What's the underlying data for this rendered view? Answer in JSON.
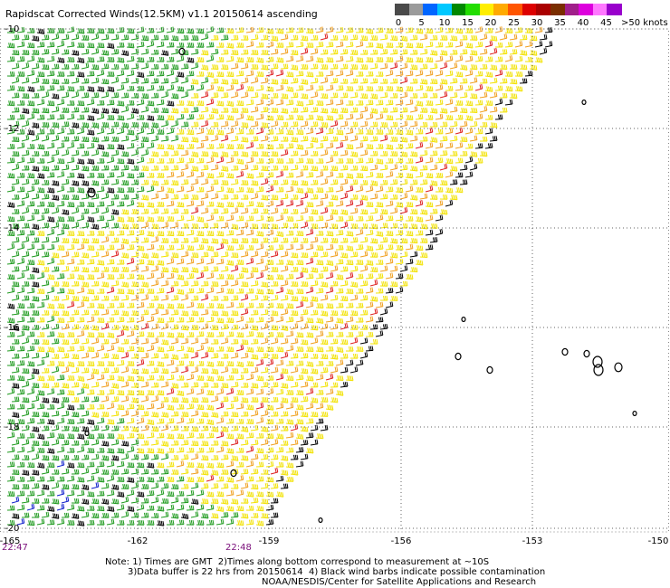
{
  "title": "Rapidscat Corrected Winds(12.5KM) v1.1 20150614 ascending",
  "color_scale": {
    "units": ">50 knots",
    "tick_labels": [
      "0",
      "5",
      "10",
      "15",
      "20",
      "25",
      "30",
      "35",
      "40",
      "45"
    ],
    "colors": [
      "#4a4a4a",
      "#9b9b9b",
      "#0066ff",
      "#00c8ff",
      "#008800",
      "#22dd00",
      "#ffee00",
      "#ffaa00",
      "#ff5500",
      "#dd0000",
      "#aa0000",
      "#7a2e00",
      "#a01f8a",
      "#dd00dd",
      "#ff77ff",
      "#9900cc"
    ]
  },
  "map": {
    "lat_labels": [
      "-10",
      "-12",
      "-14",
      "-16",
      "-18",
      "-20"
    ],
    "lon_labels": [
      "-165",
      "-162",
      "-159",
      "-156",
      "-153",
      "-150"
    ],
    "barb_colors": {
      "green": "#1e9a1e",
      "yellow": "#f2e200",
      "orange": "#f0a020",
      "red": "#dd2020",
      "blue": "#1020cc",
      "black": "#000000"
    }
  },
  "times": {
    "left": "22:47",
    "middle": "22:48"
  },
  "notes": {
    "line1": "Note: 1) Times are GMT  2)Times along bottom correspond to measurement at ~10S",
    "line2": "3)Data buffer is 22 hrs from 20150614  4) Black wind barbs indicate possible contamination",
    "line3": "NOAA/NESDIS/Center for Satellite Applications and Research"
  }
}
